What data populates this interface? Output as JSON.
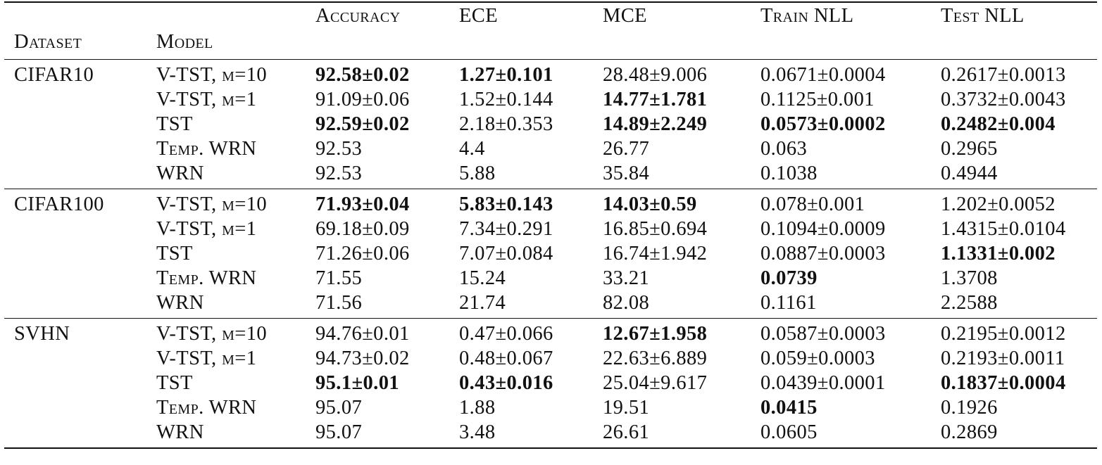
{
  "headers": {
    "dataset": "Dataset",
    "model": "Model",
    "accuracy": "Accuracy",
    "ece": "ECE",
    "mce": "MCE",
    "train_nll": "Train NLL",
    "test_nll": "Test NLL"
  },
  "groups": [
    {
      "dataset": "CIFAR10",
      "rows": [
        {
          "model_main": "V-TST, ",
          "model_sc": "m=10",
          "cells": [
            {
              "v": "92.58±0.02",
              "b": true
            },
            {
              "v": "1.27±0.101",
              "b": true
            },
            {
              "v": "28.48±9.006",
              "b": false
            },
            {
              "v": "0.0671±0.0004",
              "b": false
            },
            {
              "v": "0.2617±0.0013",
              "b": false
            }
          ]
        },
        {
          "model_main": "V-TST, ",
          "model_sc": "m=1",
          "cells": [
            {
              "v": "91.09±0.06",
              "b": false
            },
            {
              "v": "1.52±0.144",
              "b": false
            },
            {
              "v": "14.77±1.781",
              "b": true
            },
            {
              "v": "0.1125±0.001",
              "b": false
            },
            {
              "v": "0.3732±0.0043",
              "b": false
            }
          ]
        },
        {
          "model_main": "TST",
          "model_sc": "",
          "cells": [
            {
              "v": "92.59±0.02",
              "b": true
            },
            {
              "v": "2.18±0.353",
              "b": false
            },
            {
              "v": "14.89±2.249",
              "b": true
            },
            {
              "v": "0.0573±0.0002",
              "b": true
            },
            {
              "v": "0.2482±0.004",
              "b": true
            }
          ]
        },
        {
          "model_main": "",
          "model_sc": "Temp.",
          "model_tail": " WRN",
          "cells": [
            {
              "v": "92.53",
              "b": false
            },
            {
              "v": "4.4",
              "b": false
            },
            {
              "v": "26.77",
              "b": false
            },
            {
              "v": "0.063",
              "b": false
            },
            {
              "v": "0.2965",
              "b": false
            }
          ]
        },
        {
          "model_main": "WRN",
          "model_sc": "",
          "cells": [
            {
              "v": "92.53",
              "b": false
            },
            {
              "v": "5.88",
              "b": false
            },
            {
              "v": "35.84",
              "b": false
            },
            {
              "v": "0.1038",
              "b": false
            },
            {
              "v": "0.4944",
              "b": false
            }
          ]
        }
      ]
    },
    {
      "dataset": "CIFAR100",
      "rows": [
        {
          "model_main": "V-TST, ",
          "model_sc": "m=10",
          "cells": [
            {
              "v": "71.93±0.04",
              "b": true
            },
            {
              "v": "5.83±0.143",
              "b": true
            },
            {
              "v": "14.03±0.59",
              "b": true
            },
            {
              "v": "0.078±0.001",
              "b": false
            },
            {
              "v": "1.202±0.0052",
              "b": false
            }
          ]
        },
        {
          "model_main": "V-TST, ",
          "model_sc": "m=1",
          "cells": [
            {
              "v": "69.18±0.09",
              "b": false
            },
            {
              "v": "7.34±0.291",
              "b": false
            },
            {
              "v": "16.85±0.694",
              "b": false
            },
            {
              "v": "0.1094±0.0009",
              "b": false
            },
            {
              "v": "1.4315±0.0104",
              "b": false
            }
          ]
        },
        {
          "model_main": "TST",
          "model_sc": "",
          "cells": [
            {
              "v": "71.26±0.06",
              "b": false
            },
            {
              "v": "7.07±0.084",
              "b": false
            },
            {
              "v": "16.74±1.942",
              "b": false
            },
            {
              "v": "0.0887±0.0003",
              "b": false
            },
            {
              "v": "1.1331±0.002",
              "b": true
            }
          ]
        },
        {
          "model_main": "",
          "model_sc": "Temp.",
          "model_tail": " WRN",
          "cells": [
            {
              "v": "71.55",
              "b": false
            },
            {
              "v": "15.24",
              "b": false
            },
            {
              "v": "33.21",
              "b": false
            },
            {
              "v": "0.0739",
              "b": true
            },
            {
              "v": "1.3708",
              "b": false
            }
          ]
        },
        {
          "model_main": "WRN",
          "model_sc": "",
          "cells": [
            {
              "v": "71.56",
              "b": false
            },
            {
              "v": "21.74",
              "b": false
            },
            {
              "v": "82.08",
              "b": false
            },
            {
              "v": "0.1161",
              "b": false
            },
            {
              "v": "2.2588",
              "b": false
            }
          ]
        }
      ]
    },
    {
      "dataset": "SVHN",
      "rows": [
        {
          "model_main": "V-TST, ",
          "model_sc": "m=10",
          "cells": [
            {
              "v": "94.76±0.01",
              "b": false
            },
            {
              "v": "0.47±0.066",
              "b": false
            },
            {
              "v": "12.67±1.958",
              "b": true
            },
            {
              "v": "0.0587±0.0003",
              "b": false
            },
            {
              "v": "0.2195±0.0012",
              "b": false
            }
          ]
        },
        {
          "model_main": "V-TST, ",
          "model_sc": "m=1",
          "cells": [
            {
              "v": "94.73±0.02",
              "b": false
            },
            {
              "v": "0.48±0.067",
              "b": false
            },
            {
              "v": "22.63±6.889",
              "b": false
            },
            {
              "v": "0.059±0.0003",
              "b": false
            },
            {
              "v": "0.2193±0.0011",
              "b": false
            }
          ]
        },
        {
          "model_main": "TST",
          "model_sc": "",
          "cells": [
            {
              "v": "95.1±0.01",
              "b": true
            },
            {
              "v": "0.43±0.016",
              "b": true
            },
            {
              "v": "25.04±9.617",
              "b": false
            },
            {
              "v": "0.0439±0.0001",
              "b": false
            },
            {
              "v": "0.1837±0.0004",
              "b": true
            }
          ]
        },
        {
          "model_main": "",
          "model_sc": "Temp.",
          "model_tail": " WRN",
          "cells": [
            {
              "v": "95.07",
              "b": false
            },
            {
              "v": "1.88",
              "b": false
            },
            {
              "v": "19.51",
              "b": false
            },
            {
              "v": "0.0415",
              "b": true
            },
            {
              "v": "0.1926",
              "b": false
            }
          ]
        },
        {
          "model_main": "WRN",
          "model_sc": "",
          "cells": [
            {
              "v": "95.07",
              "b": false
            },
            {
              "v": "3.48",
              "b": false
            },
            {
              "v": "26.61",
              "b": false
            },
            {
              "v": "0.0605",
              "b": false
            },
            {
              "v": "0.2869",
              "b": false
            }
          ]
        }
      ]
    }
  ]
}
